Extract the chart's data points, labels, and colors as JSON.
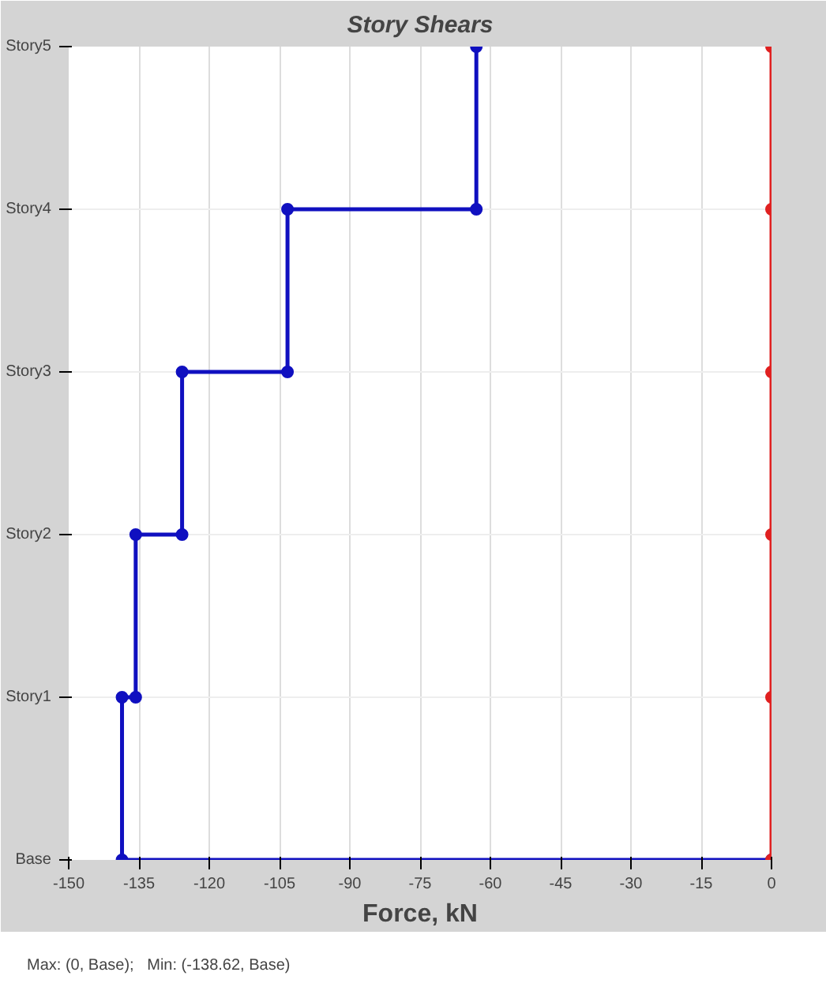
{
  "chart_data": {
    "type": "line",
    "title": "Story Shears",
    "xlabel": "Force, kN",
    "orientation": "horizontal",
    "categories": [
      "Story5",
      "Story4",
      "Story3",
      "Story2",
      "Story1",
      "Base"
    ],
    "xlim": [
      -150,
      0
    ],
    "xticks": [
      -150,
      -135,
      -120,
      -105,
      -90,
      -75,
      -60,
      -45,
      -30,
      -15,
      0
    ],
    "series": [
      {
        "color": "#1010c0",
        "x": [
          "Story5",
          "Story4",
          "Story4",
          "Story3",
          "Story3",
          "Story2",
          "Story2",
          "Story1",
          "Story1",
          "Base",
          "Base"
        ],
        "values": [
          -63,
          -63,
          -103.3,
          -103.3,
          -125.8,
          -125.8,
          -135.7,
          -135.7,
          -138.62,
          -138.62,
          0
        ]
      },
      {
        "color": "#e02020",
        "x": [
          "Story5",
          "Story4",
          "Story3",
          "Story2",
          "Story1",
          "Base"
        ],
        "values": [
          0,
          0,
          0,
          0,
          0,
          0
        ]
      }
    ],
    "marker": "circle",
    "line_style": "solid",
    "grid": true,
    "annotations": [
      "Max: (0, Base);   Min: (-138.62, Base)"
    ]
  }
}
